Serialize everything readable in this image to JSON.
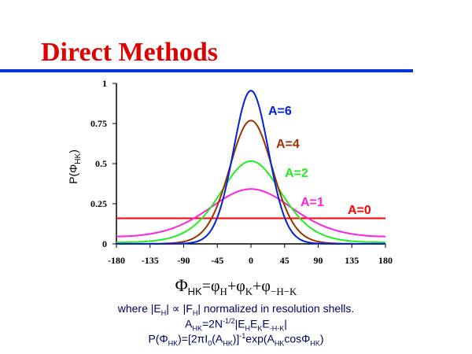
{
  "slide": {
    "title": "Direct Methods",
    "accent_color": "#0033dd",
    "title_color": "#e00000"
  },
  "chart_data": {
    "type": "line",
    "xlabel_main": "Φ",
    "xlabel_sub": "HK",
    "ylabel_main": "P(Φ",
    "ylabel_sub": "HK",
    "ylabel_end": ")",
    "xlim": [
      -180,
      180
    ],
    "ylim": [
      0,
      1
    ],
    "x_ticks": [
      "-180",
      "-135",
      "-90",
      "-45",
      "0",
      "45",
      "90",
      "135",
      "180"
    ],
    "y_ticks": [
      "0",
      "0.25",
      "0.5",
      "0.75",
      "1"
    ],
    "x": [
      -180,
      -135,
      -90,
      -45,
      0,
      45,
      90,
      135,
      180
    ],
    "series": [
      {
        "name": "A=6",
        "A": 6,
        "color": "#0022dd",
        "values": [
          0.0,
          0.0,
          0.0024,
          0.165,
          0.955,
          0.165,
          0.0024,
          0.0,
          0.0
        ]
      },
      {
        "name": "A=4",
        "A": 4,
        "color": "#993300",
        "values": [
          0.0003,
          0.0008,
          0.0141,
          0.238,
          0.769,
          0.238,
          0.0141,
          0.0008,
          0.0003
        ]
      },
      {
        "name": "A=2",
        "A": 2,
        "color": "#22ee22",
        "values": [
          0.0094,
          0.017,
          0.0698,
          0.287,
          0.516,
          0.287,
          0.0698,
          0.017,
          0.0094
        ]
      },
      {
        "name": "A=1",
        "A": 1,
        "color": "#ff22dd",
        "values": [
          0.046,
          0.062,
          0.126,
          0.255,
          0.342,
          0.255,
          0.126,
          0.062,
          0.046
        ]
      },
      {
        "name": "A=0",
        "A": 0,
        "color": "#ff0000",
        "values": [
          0.159,
          0.159,
          0.159,
          0.159,
          0.159,
          0.159,
          0.159,
          0.159,
          0.159
        ]
      }
    ]
  },
  "formula": {
    "phi": "Φ",
    "phi_sub": "HK",
    "eq": "=φ",
    "h": "H",
    "plus1": "+φ",
    "k": "K",
    "plus2": "+φ",
    "mhk": "−H−K"
  },
  "notes": {
    "line1_a": "where |E",
    "line1_b": "H",
    "line1_c": "| ∝ |F",
    "line1_d": "H",
    "line1_e": "| normalized in resolution shells.",
    "line2_a": "A",
    "line2_b": "HK",
    "line2_c": "=2N",
    "line2_d": "-1/2",
    "line2_e": "|E",
    "line2_f": "H",
    "line2_g": "E",
    "line2_h": "K",
    "line2_i": "E",
    "line2_j": "-H-K",
    "line2_k": "|",
    "line3_a": "P(Φ",
    "line3_b": "HK",
    "line3_c": ")=[2πI",
    "line3_d": "0",
    "line3_e": "(A",
    "line3_f": "HK",
    "line3_g": ")]",
    "line3_h": "-1",
    "line3_i": "exp(A",
    "line3_j": "HK",
    "line3_k": "cosΦ",
    "line3_l": "HK",
    "line3_m": ")"
  }
}
